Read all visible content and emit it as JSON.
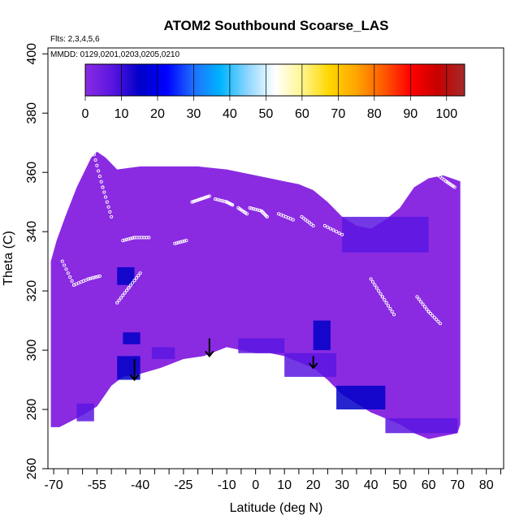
{
  "chart_data": {
    "type": "heatmap",
    "title": "ATOM2 Southbound Scoarse_LAS",
    "subtitle": "Flts: 2,3,4,5,6",
    "mmdd": "MMDD: 0129,0201,0203,0205,0210",
    "xlabel": "Latitude (deg N)",
    "ylabel": "Theta (C)",
    "xlim": [
      -72,
      86
    ],
    "ylim": [
      260,
      402
    ],
    "x_ticks": [
      -70,
      -55,
      -40,
      -25,
      -10,
      0,
      10,
      20,
      30,
      40,
      50,
      60,
      70,
      80
    ],
    "x_tick_labels": [
      "-70",
      "-55",
      "-40",
      "-25",
      "-10",
      "0",
      "10",
      "20",
      "30",
      "40",
      "50",
      "60",
      "70",
      "80"
    ],
    "x_minor_ticks": [
      -65,
      -60,
      -50,
      -45,
      -35,
      -30,
      -20,
      -15,
      -5,
      5,
      15,
      25,
      35,
      45,
      55,
      65,
      75,
      85
    ],
    "y_ticks": [
      260,
      280,
      300,
      320,
      340,
      360,
      380,
      400
    ],
    "y_tick_labels": [
      "260",
      "280",
      "300",
      "320",
      "340",
      "360",
      "380",
      "400"
    ],
    "colorbar": {
      "ticks": [
        0,
        10,
        20,
        30,
        40,
        50,
        60,
        70,
        80,
        90,
        100
      ],
      "tick_labels": [
        "0",
        "10",
        "20",
        "30",
        "40",
        "50",
        "60",
        "70",
        "80",
        "90",
        "100"
      ],
      "range": [
        0,
        105
      ],
      "colors": [
        "#8a2be2",
        "#5a16e0",
        "#0000c8",
        "#0000ff",
        "#1e6fff",
        "#00b4ff",
        "#8fd6ff",
        "#ffffff",
        "#fff68f",
        "#ffd700",
        "#ffa500",
        "#ff5a00",
        "#ff0000",
        "#c80000",
        "#a52a2a"
      ]
    },
    "background_value": 3,
    "domain_outline": [
      [
        -71,
        274
      ],
      [
        -68,
        274
      ],
      [
        -60,
        278
      ],
      [
        -55,
        281
      ],
      [
        -50,
        288
      ],
      [
        -46,
        291
      ],
      [
        -40,
        292
      ],
      [
        -33,
        294
      ],
      [
        -25,
        297
      ],
      [
        -18,
        298
      ],
      [
        -10,
        301
      ],
      [
        -5,
        300
      ],
      [
        0,
        299
      ],
      [
        5,
        299
      ],
      [
        10,
        298
      ],
      [
        15,
        296
      ],
      [
        20,
        294
      ],
      [
        25,
        290
      ],
      [
        30,
        285
      ],
      [
        35,
        282
      ],
      [
        40,
        279
      ],
      [
        45,
        277
      ],
      [
        50,
        275
      ],
      [
        55,
        272
      ],
      [
        60,
        270
      ],
      [
        65,
        271
      ],
      [
        70,
        272
      ],
      [
        71,
        275
      ],
      [
        71,
        357
      ],
      [
        68,
        358
      ],
      [
        65,
        359
      ],
      [
        60,
        358
      ],
      [
        55,
        355
      ],
      [
        50,
        348
      ],
      [
        45,
        344
      ],
      [
        40,
        341
      ],
      [
        35,
        342
      ],
      [
        30,
        345
      ],
      [
        25,
        350
      ],
      [
        20,
        354
      ],
      [
        15,
        356
      ],
      [
        10,
        357
      ],
      [
        5,
        358
      ],
      [
        0,
        359
      ],
      [
        -5,
        360
      ],
      [
        -10,
        361
      ],
      [
        -20,
        362
      ],
      [
        -30,
        362
      ],
      [
        -40,
        362
      ],
      [
        -48,
        361
      ],
      [
        -52,
        365
      ],
      [
        -55,
        367
      ],
      [
        -57,
        365
      ],
      [
        -62,
        355
      ],
      [
        -66,
        345
      ],
      [
        -69,
        337
      ],
      [
        -71,
        330
      ]
    ],
    "low_value_patches": [
      {
        "lat": [
          -62,
          -56
        ],
        "theta": [
          276,
          282
        ],
        "value": 8
      },
      {
        "lat": [
          -48,
          -40
        ],
        "theta": [
          290,
          298
        ],
        "value": 12
      },
      {
        "lat": [
          -36,
          -28
        ],
        "theta": [
          297,
          301
        ],
        "value": 10
      },
      {
        "lat": [
          -6,
          10
        ],
        "theta": [
          299,
          304
        ],
        "value": 9
      },
      {
        "lat": [
          10,
          28
        ],
        "theta": [
          291,
          299
        ],
        "value": 11
      },
      {
        "lat": [
          28,
          45
        ],
        "theta": [
          280,
          288
        ],
        "value": 12
      },
      {
        "lat": [
          45,
          70
        ],
        "theta": [
          272,
          277
        ],
        "value": 10
      },
      {
        "lat": [
          -48,
          -42
        ],
        "theta": [
          322,
          328
        ],
        "value": 14
      },
      {
        "lat": [
          20,
          26
        ],
        "theta": [
          300,
          310
        ],
        "value": 12
      },
      {
        "lat": [
          -46,
          -40
        ],
        "theta": [
          302,
          306
        ],
        "value": 16
      },
      {
        "lat": [
          30,
          60
        ],
        "theta": [
          333,
          345
        ],
        "value": 5
      }
    ],
    "flight_tracks": [
      [
        [
          -67,
          330
        ],
        [
          -63,
          322
        ],
        [
          -58,
          324
        ],
        [
          -54,
          325
        ]
      ],
      [
        [
          -56,
          366
        ],
        [
          -53,
          355
        ],
        [
          -50,
          345
        ]
      ],
      [
        [
          -48,
          316
        ],
        [
          -44,
          321
        ],
        [
          -40,
          326
        ]
      ],
      [
        [
          -46,
          337
        ],
        [
          -42,
          338
        ],
        [
          -37,
          338
        ]
      ],
      [
        [
          -28,
          336
        ],
        [
          -24,
          337
        ]
      ],
      [
        [
          -22,
          350
        ],
        [
          -19,
          351
        ],
        [
          -16,
          352
        ]
      ],
      [
        [
          -14,
          351
        ],
        [
          -10,
          350
        ],
        [
          -8,
          349
        ]
      ],
      [
        [
          -6,
          348
        ],
        [
          -3,
          346
        ]
      ],
      [
        [
          -2,
          348
        ],
        [
          2,
          347
        ],
        [
          4,
          345
        ]
      ],
      [
        [
          8,
          346
        ],
        [
          13,
          344
        ]
      ],
      [
        [
          16,
          345
        ],
        [
          20,
          342
        ]
      ],
      [
        [
          24,
          342
        ],
        [
          30,
          339
        ]
      ],
      [
        [
          40,
          324
        ],
        [
          44,
          318
        ],
        [
          48,
          312
        ]
      ],
      [
        [
          56,
          318
        ],
        [
          60,
          313
        ],
        [
          64,
          309
        ]
      ],
      [
        [
          62,
          360
        ],
        [
          66,
          357
        ],
        [
          69,
          355
        ]
      ]
    ],
    "arrows": [
      {
        "lat": -42,
        "theta_from": 297,
        "theta_to": 290
      },
      {
        "lat": -16,
        "theta_from": 304,
        "theta_to": 298
      },
      {
        "lat": 20,
        "theta_from": 298,
        "theta_to": 294
      }
    ]
  }
}
